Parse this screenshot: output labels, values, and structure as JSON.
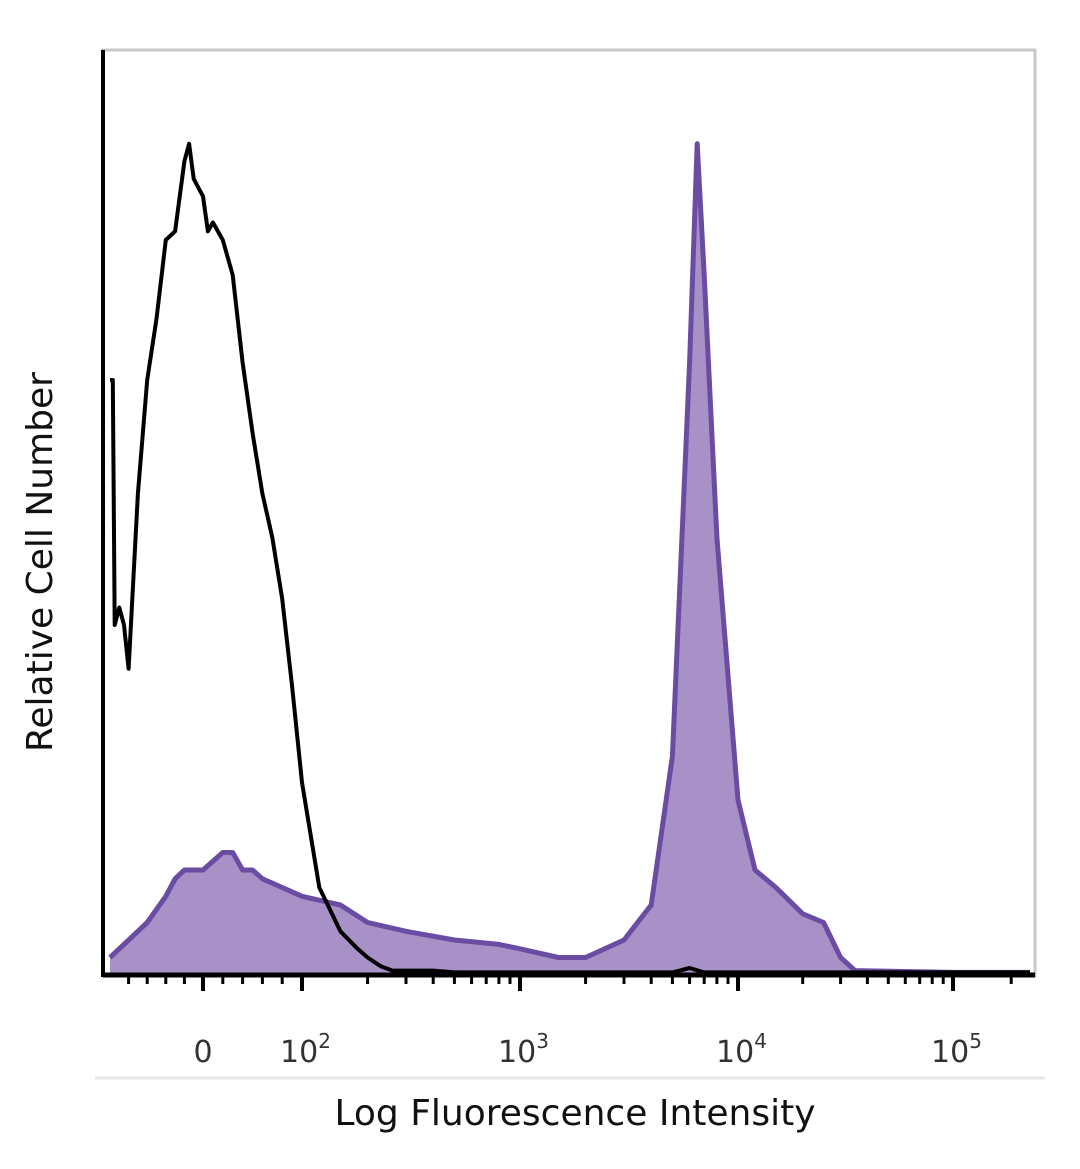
{
  "chart_data": {
    "type": "area",
    "title": "",
    "xlabel": "Log Fluorescence Intensity",
    "ylabel": "Relative Cell Number",
    "x_scale": "biexponential (log above 10^2)",
    "xlim": [
      -100,
      250000
    ],
    "ylim": [
      0,
      100
    ],
    "grid": false,
    "legend": "none",
    "x_ticks": [
      {
        "value": 0,
        "label": "0"
      },
      {
        "value": 100,
        "base": "10",
        "exp": "2"
      },
      {
        "value": 1000,
        "base": "10",
        "exp": "3"
      },
      {
        "value": 10000,
        "base": "10",
        "exp": "4"
      },
      {
        "value": 100000,
        "base": "10",
        "exp": "5"
      }
    ],
    "series": [
      {
        "style": "outline",
        "color": "#000000",
        "x": [
          -100,
          -97,
          -95,
          -90,
          -85,
          -80,
          -70,
          -60,
          -50,
          -40,
          -30,
          -20,
          -15,
          -10,
          -5,
          0,
          5,
          10,
          20,
          30,
          40,
          50,
          60,
          70,
          80,
          90,
          100,
          120,
          150,
          180,
          200,
          230,
          260,
          300,
          400,
          500,
          700,
          1000,
          2000,
          5000,
          6000,
          7000,
          10000,
          100000,
          250000
        ],
        "y": [
          68,
          68,
          40,
          42,
          40,
          35,
          55,
          68,
          75,
          84,
          85,
          93,
          95,
          91,
          90,
          89,
          85,
          86,
          84,
          80,
          70,
          62,
          55,
          50,
          43,
          33,
          22,
          10,
          5,
          3,
          2,
          1,
          0.5,
          0.5,
          0.5,
          0.3,
          0.3,
          0.3,
          0.3,
          0.3,
          0.8,
          0.3,
          0.3,
          0.3,
          0.3
        ]
      },
      {
        "style": "filled",
        "color": "#6a4ca3",
        "fill": "#a891c6",
        "x": [
          -100,
          -60,
          -40,
          -30,
          -20,
          -10,
          0,
          10,
          20,
          30,
          40,
          50,
          60,
          80,
          100,
          150,
          200,
          300,
          500,
          800,
          1000,
          1500,
          2000,
          3000,
          4000,
          5000,
          6000,
          6500,
          7000,
          8000,
          10000,
          12000,
          15000,
          20000,
          25000,
          30000,
          35000,
          100000,
          250000
        ],
        "y": [
          2,
          6,
          9,
          11,
          12,
          12,
          12,
          13,
          14,
          14,
          12,
          12,
          11,
          10,
          9,
          8,
          6,
          5,
          4,
          3.5,
          3,
          2,
          2,
          4,
          8,
          25,
          70,
          95,
          80,
          50,
          20,
          12,
          10,
          7,
          6,
          2,
          0.5,
          0.3,
          0.3
        ]
      }
    ]
  }
}
